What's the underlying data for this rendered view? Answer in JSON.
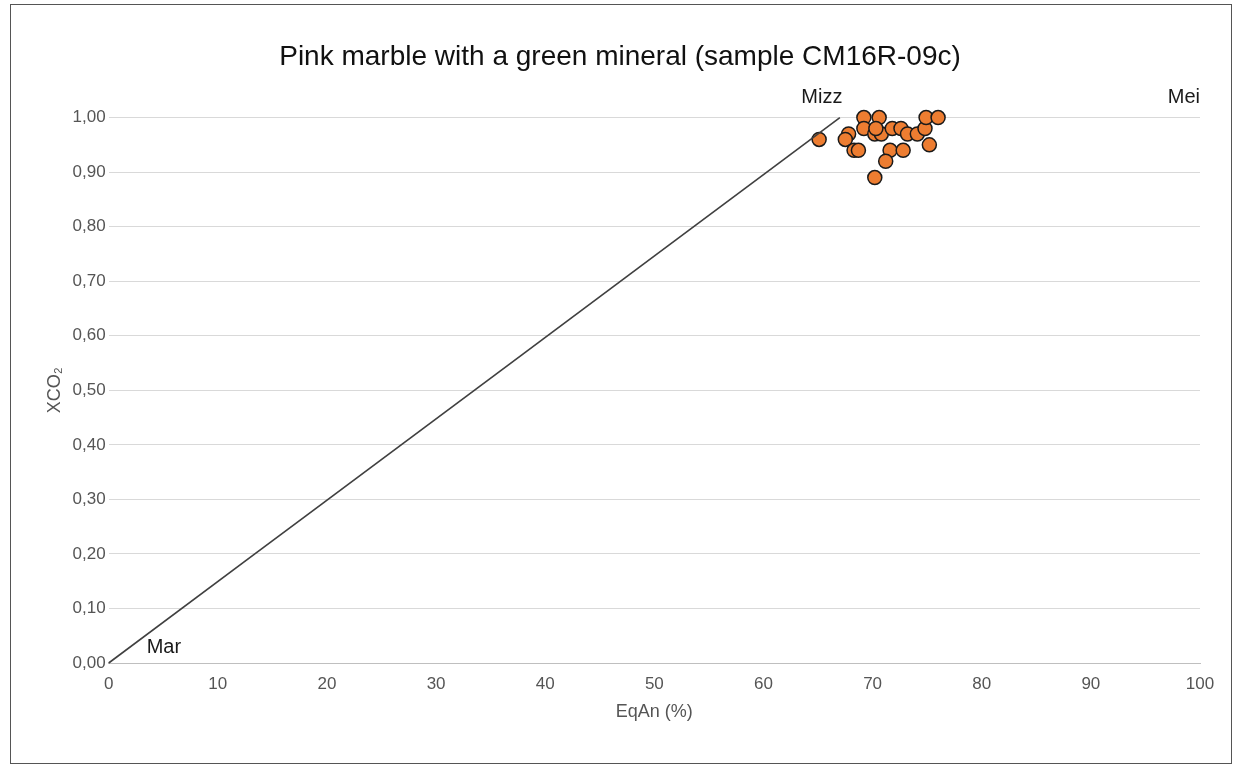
{
  "chart_data": {
    "type": "scatter",
    "title": "Pink marble with a green mineral (sample CM16R-09c)",
    "xlabel": "EqAn (%)",
    "ylabel": "XCO₂",
    "xlim": [
      0,
      100
    ],
    "xticks": [
      0,
      10,
      20,
      30,
      40,
      50,
      60,
      70,
      80,
      90,
      100
    ],
    "ylim": [
      0,
      1
    ],
    "yticks": [
      {
        "value": 0,
        "label": "0,00"
      },
      {
        "value": 0.1,
        "label": "0,10"
      },
      {
        "value": 0.2,
        "label": "0,20"
      },
      {
        "value": 0.3,
        "label": "0,30"
      },
      {
        "value": 0.4,
        "label": "0,40"
      },
      {
        "value": 0.5,
        "label": "0,50"
      },
      {
        "value": 0.6,
        "label": "0,60"
      },
      {
        "value": 0.7,
        "label": "0,70"
      },
      {
        "value": 0.8,
        "label": "0,80"
      },
      {
        "value": 0.9,
        "label": "0,90"
      },
      {
        "value": 1,
        "label": "1,00"
      }
    ],
    "grid": "y",
    "legend": false,
    "marker": "circle",
    "series": [
      {
        "type": "line",
        "color": "#404040",
        "x": [
          0,
          67
        ],
        "values": [
          0,
          1
        ],
        "marker": "none"
      },
      {
        "color": "#ed7d31",
        "x": [
          65.1,
          67.8,
          67.5,
          68.3,
          68.7,
          69.2,
          70.6,
          69.2,
          70.2,
          70.8,
          70.3,
          71.8,
          72.6,
          73.2,
          74.1,
          74.8,
          74.9,
          76.0,
          75.2,
          71.6,
          72.8,
          71.2,
          70.2
        ],
        "values": [
          0.96,
          0.97,
          0.96,
          0.94,
          0.94,
          1.0,
          1.0,
          0.98,
          0.97,
          0.97,
          0.98,
          0.98,
          0.98,
          0.97,
          0.97,
          0.98,
          1.0,
          1.0,
          0.95,
          0.94,
          0.94,
          0.92,
          0.89
        ]
      }
    ],
    "annotations": [
      {
        "text": "Mar",
        "x": 0,
        "y": 0
      },
      {
        "text": "Mizz",
        "x": 67,
        "y": 1
      },
      "Mei"
    ]
  }
}
